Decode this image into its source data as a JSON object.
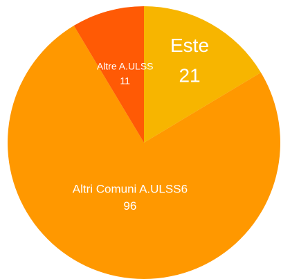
{
  "chart_data": {
    "type": "pie",
    "categories": [
      "Este",
      "Altri Comuni A.ULSS6",
      "Altre A.ULSS"
    ],
    "values": [
      21,
      96,
      11
    ],
    "colors": [
      "#f7b500",
      "#ff9800",
      "#ff5a05"
    ]
  }
}
